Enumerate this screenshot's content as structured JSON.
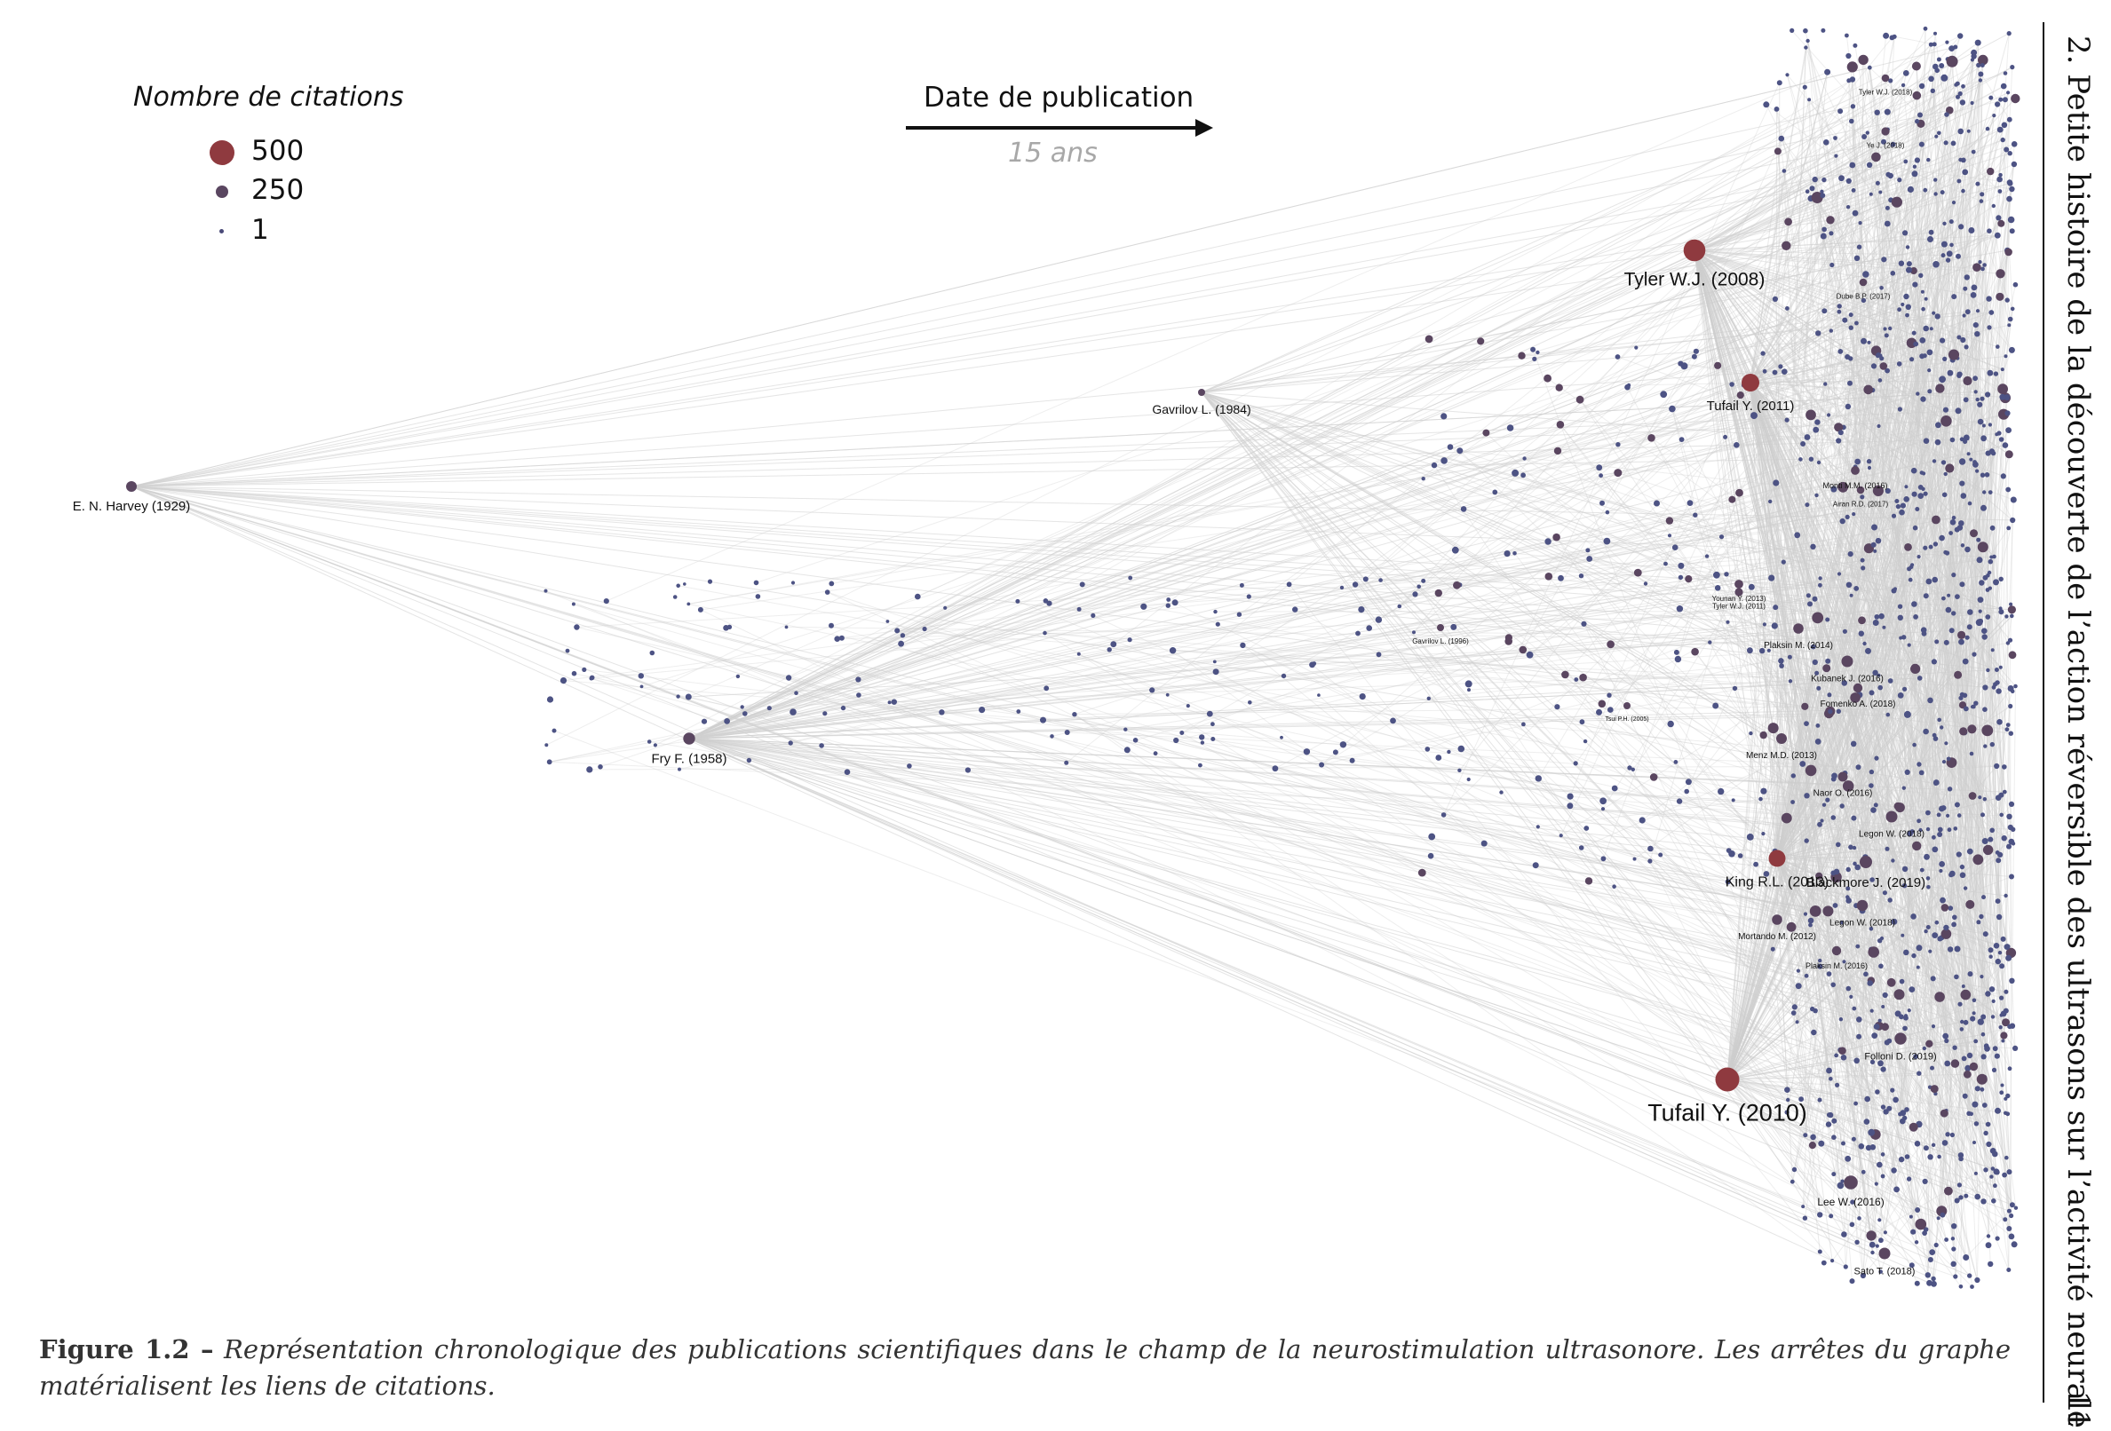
{
  "legend": {
    "title": "Nombre de citations",
    "items": [
      {
        "label": "500",
        "radius": 14,
        "color": "#8f3a3f"
      },
      {
        "label": "250",
        "radius": 7,
        "color": "#5a4660"
      },
      {
        "label": "1",
        "radius": 2.5,
        "color": "#4a4a78"
      }
    ]
  },
  "time_arrow": {
    "label": "Date de publication",
    "scale": "15 ans"
  },
  "colors": {
    "edge": "#cfcfcf",
    "node_small": "#4d5384",
    "node_mid": "#5a4660",
    "node_large": "#8f3a3f"
  },
  "nodes": [
    {
      "label": "E. N. Harvey (1929)",
      "citations": 120
    },
    {
      "label": "Fry F. (1958)",
      "citations": 150
    },
    {
      "label": "Gavrilov L. (1984)",
      "citations": 30
    },
    {
      "label": "Tyler W.J. (2008)",
      "citations": 500
    },
    {
      "label": "Tufail Y. (2011)",
      "citations": 330
    },
    {
      "label": "Tufail Y. (2010)",
      "citations": 600
    },
    {
      "label": "King R.L. (2013)",
      "citations": 300
    },
    {
      "label": "Blackmore J. (2019)",
      "citations": 160
    },
    {
      "label": "Lee W. (2016)",
      "citations": 200
    },
    {
      "label": "Sato T. (2018)",
      "citations": 140
    },
    {
      "label": "Menz M.D. (2013)",
      "citations": 120
    },
    {
      "label": "Plaksin M. (2014)",
      "citations": 110
    },
    {
      "label": "Folloni D. (2019)",
      "citations": 150
    },
    {
      "label": "Legon W. (2018)",
      "citations": 140
    },
    {
      "label": "Legon W. (2018)",
      "citations": 130
    },
    {
      "label": "Mortando M. (2012)",
      "citations": 110
    },
    {
      "label": "Kubanek J. (2016)",
      "citations": 140
    },
    {
      "label": "Fomenko A. (2018)",
      "citations": 90
    },
    {
      "label": "Naor O. (2016)",
      "citations": 100
    },
    {
      "label": "Tyler W.J. (2018)",
      "citations": 60
    },
    {
      "label": "Ye J. (2018)",
      "citations": 70
    },
    {
      "label": "Dube B.P. (2017)",
      "citations": 60
    },
    {
      "label": "Monti M.M. (2016)",
      "citations": 80
    },
    {
      "label": "Airan R.D. (2017)",
      "citations": 60
    },
    {
      "label": "Younan Y. (2013)",
      "citations": 80
    },
    {
      "label": "Tyler W.J. (2011)",
      "citations": 70
    },
    {
      "label": "Plaksin M. (2016)",
      "citations": 90
    },
    {
      "label": "Gavrilov L. (1996)",
      "citations": 40
    },
    {
      "label": "Tsui P.H. (2005)",
      "citations": 40
    }
  ],
  "caption": {
    "figure_label": "Figure 1.2 –",
    "text": "Représentation chronologique des publications scientifiques dans le champ de la neurostimulation ultrasonore. Les arrêtes du graphe matérialisent les liens de citations."
  },
  "running_header": {
    "title": "2. Petite histoire de la découverte de l’action réversible des ultrasons sur l’activité neurale",
    "page": "11"
  }
}
